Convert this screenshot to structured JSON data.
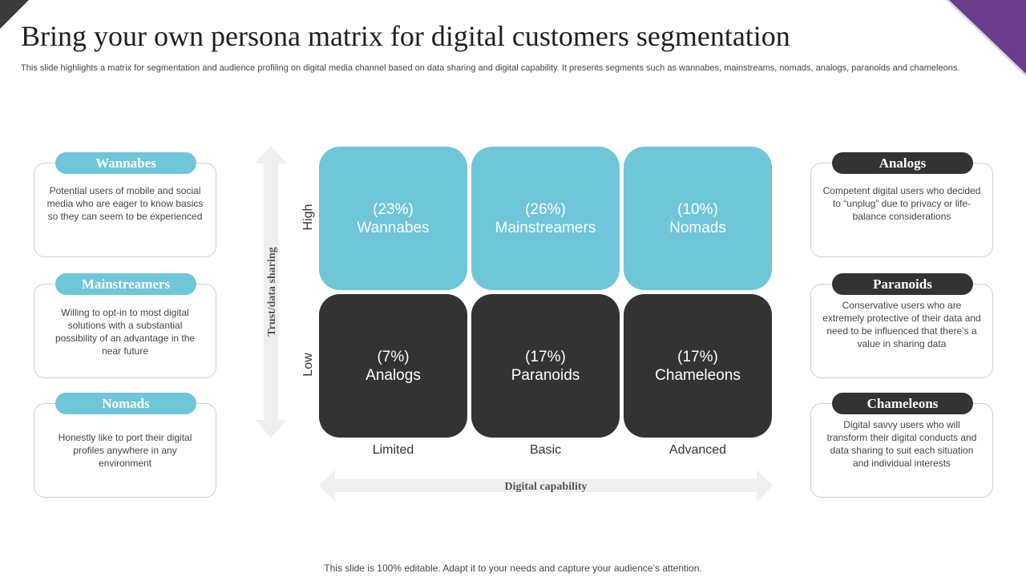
{
  "header": {
    "title": "Bring your own persona matrix for digital customers segmentation",
    "subtitle": "This slide highlights a matrix for segmentation and audience profiling on digital media channel based on data sharing and digital capability. It presents segments such as wannabes, mainstreams, nomads, analogs, paranoids and chameleons."
  },
  "left_cards": [
    {
      "label": "Wannabes",
      "desc": "Potential users of mobile and social media who are eager to know basics so they can seem to be experienced"
    },
    {
      "label": "Mainstreamers",
      "desc": "Willing to opt-in to most digital solutions with a substantial possibility of an advantage  in the near future"
    },
    {
      "label": "Nomads",
      "desc": "Honestly like to port their digital profiles anywhere  in any environment"
    }
  ],
  "right_cards": [
    {
      "label": "Analogs",
      "desc": "Competent digital users who decided to “unplug” due to privacy  or life-balance considerations"
    },
    {
      "label": "Paranoids",
      "desc": "Conservative  users who are extremely protective of their data and need to be influenced that there’s a value  in sharing data"
    },
    {
      "label": "Chameleons",
      "desc": "Digital savvy users who will transform their digital conducts and data sharing to suit each situation and individual  interests"
    }
  ],
  "matrix": {
    "y_axis_label": "Trust/data  sharing",
    "x_axis_label": "Digital capability",
    "rows": [
      "High",
      "Low"
    ],
    "columns": [
      "Limited",
      "Basic",
      "Advanced"
    ],
    "cells": [
      [
        {
          "pct": "(23%)",
          "name": "Wannabes"
        },
        {
          "pct": "(26%)",
          "name": "Mainstreamers"
        },
        {
          "pct": "(10%)",
          "name": "Nomads"
        }
      ],
      [
        {
          "pct": "(7%)",
          "name": "Analogs"
        },
        {
          "pct": "(17%)",
          "name": "Paranoids"
        },
        {
          "pct": "(17%)",
          "name": "Chameleons"
        }
      ]
    ]
  },
  "footer": "This slide is 100% editable. Adapt it to your needs and capture your audience’s attention.",
  "colors": {
    "teal": "#6fc6d8",
    "dark": "#333333",
    "accent_purple": "#6a3e8c"
  }
}
